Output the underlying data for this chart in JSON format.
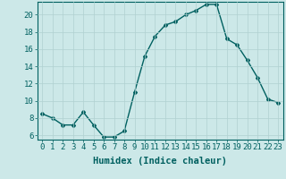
{
  "x": [
    0,
    1,
    2,
    3,
    4,
    5,
    6,
    7,
    8,
    9,
    10,
    11,
    12,
    13,
    14,
    15,
    16,
    17,
    18,
    19,
    20,
    21,
    22,
    23
  ],
  "y": [
    8.5,
    8.0,
    7.2,
    7.2,
    8.7,
    7.2,
    5.8,
    5.8,
    6.5,
    11.0,
    15.2,
    17.5,
    18.8,
    19.2,
    20.0,
    20.5,
    21.2,
    21.2,
    17.2,
    16.5,
    14.7,
    12.7,
    10.2,
    9.8
  ],
  "line_color": "#006060",
  "marker": "D",
  "marker_size": 2.0,
  "linewidth": 1.0,
  "xlabel": "Humidex (Indice chaleur)",
  "xlim": [
    -0.5,
    23.5
  ],
  "ylim": [
    5.5,
    21.5
  ],
  "yticks": [
    6,
    8,
    10,
    12,
    14,
    16,
    18,
    20
  ],
  "xticks": [
    0,
    1,
    2,
    3,
    4,
    5,
    6,
    7,
    8,
    9,
    10,
    11,
    12,
    13,
    14,
    15,
    16,
    17,
    18,
    19,
    20,
    21,
    22,
    23
  ],
  "bg_color": "#cce8e8",
  "grid_color": "#b0d0d0",
  "tick_color": "#006060",
  "label_color": "#006060",
  "xlabel_fontsize": 7.5,
  "tick_fontsize": 6.5
}
